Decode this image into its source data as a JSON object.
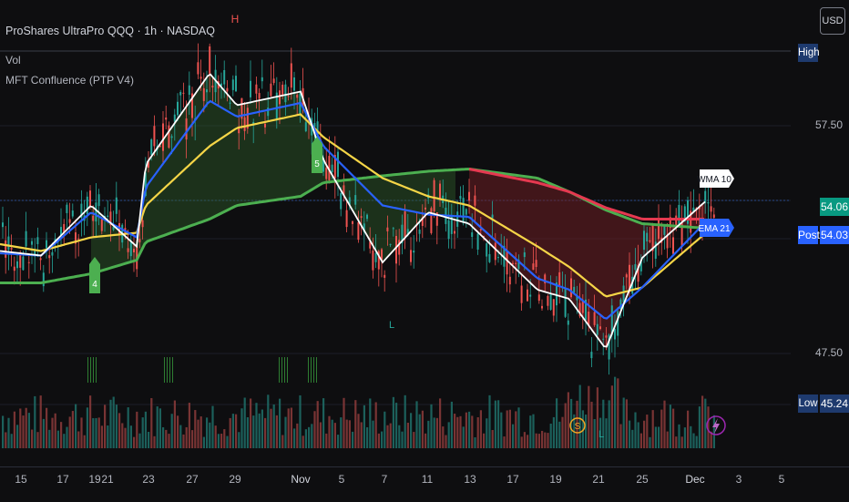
{
  "header": {
    "symbol_title": "ProShares UltraPro QQQ · 1h · NASDAQ",
    "indicator_volume": "Vol",
    "indicator_mft": "MFT Confluence (PTP V4)",
    "currency_button": "USD"
  },
  "price_axis": {
    "ticks": [
      "57.50",
      "47.50"
    ],
    "high_label": "High",
    "low_label": "Low",
    "low_value": "45.24",
    "last_price": "54.06",
    "post_label": "Post",
    "post_price": "54.03"
  },
  "chart_markers": {
    "high_marker": "H",
    "low_marker": "L",
    "signal_4": "4",
    "signal_5": "5",
    "wma_label": "WMA 10",
    "ema_label": "EMA 21",
    "event_s": "S"
  },
  "time_axis": {
    "labels": [
      "15",
      "17",
      "19",
      "21",
      "23",
      "27",
      "29",
      "Nov",
      "5",
      "7",
      "11",
      "13",
      "17",
      "19",
      "21",
      "25",
      "Dec",
      "3",
      "5"
    ]
  },
  "colors": {
    "background": "#0e0e10",
    "up": "#26a69a",
    "down": "#ef5350",
    "price_line": "#ffffff",
    "ema21": "#2962ff",
    "yellow_ma": "#f5d547",
    "green_ma": "#4caf50",
    "red_ma": "#e53950",
    "post_badge": "#2962ff",
    "last_badge": "#089981",
    "high_low_badge": "#1e3a6e"
  },
  "chart_data": {
    "type": "line",
    "title": "ProShares UltraPro QQQ · 1h · NASDAQ",
    "x": [
      "15",
      "17",
      "19",
      "21",
      "23",
      "27",
      "29",
      "Nov",
      "5",
      "7",
      "11",
      "13",
      "17",
      "19",
      "21",
      "25",
      "Dec"
    ],
    "series": [
      {
        "name": "WMA 10",
        "values": [
          52.0,
          51.8,
          54.0,
          52.2,
          55.8,
          59.8,
          58.4,
          59.0,
          56.0,
          51.5,
          53.7,
          53.2,
          50.3,
          49.9,
          47.7,
          51.7,
          54.2
        ]
      },
      {
        "name": "EMA 21",
        "values": [
          51.9,
          51.8,
          53.7,
          52.6,
          54.8,
          58.6,
          57.9,
          58.5,
          56.6,
          54.0,
          53.6,
          53.5,
          50.8,
          50.3,
          49.0,
          50.4,
          53.3
        ]
      }
    ],
    "annotations": [
      "H",
      "L",
      "4",
      "5",
      "S"
    ],
    "ylim": [
      45.24,
      60.5
    ]
  }
}
